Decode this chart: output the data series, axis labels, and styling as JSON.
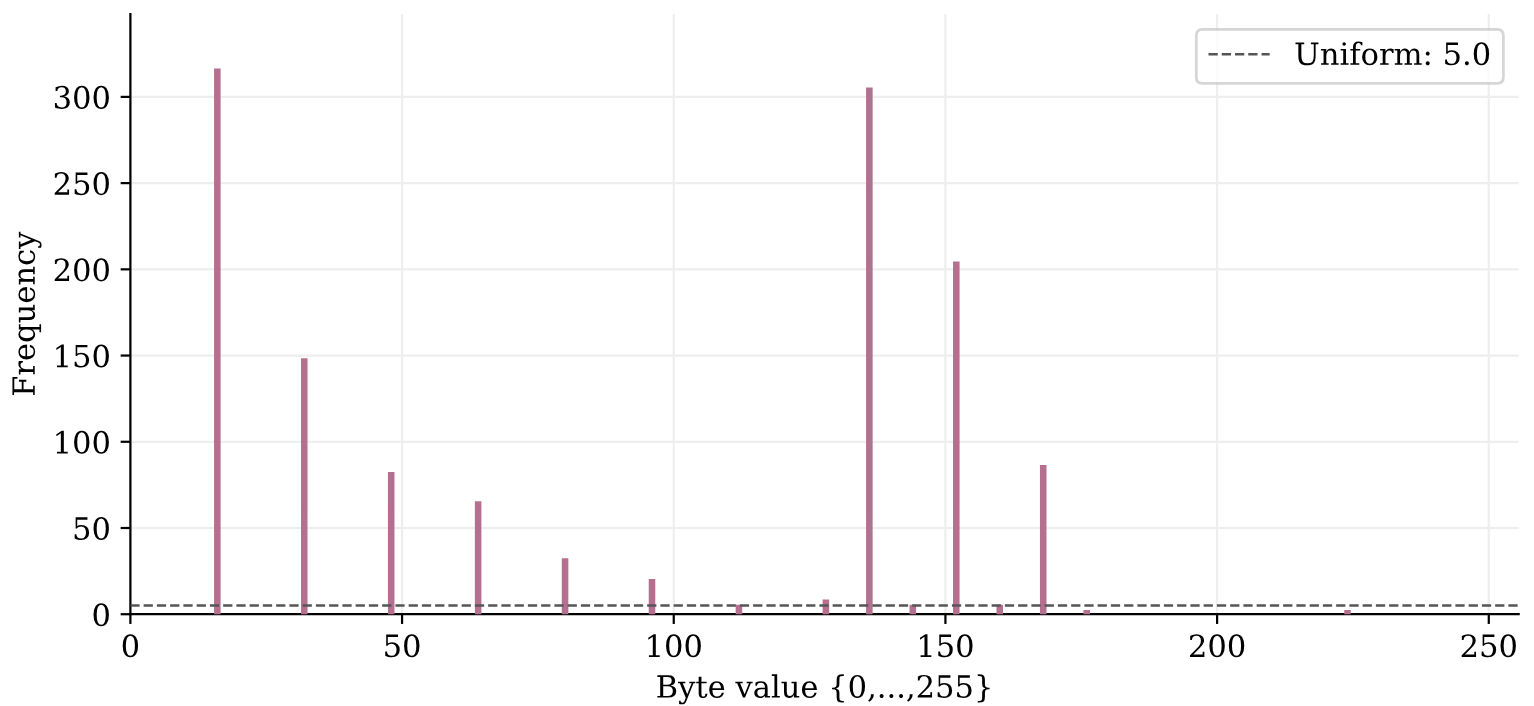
{
  "chart_data": {
    "type": "bar",
    "xlabel": "Byte value {0,...,255}",
    "ylabel": "Frequency",
    "x": [
      16,
      32,
      48,
      64,
      80,
      96,
      112,
      128,
      136,
      144,
      152,
      160,
      168,
      176,
      224
    ],
    "values": [
      316,
      148,
      82,
      65,
      32,
      20,
      5,
      8,
      305,
      5,
      204,
      5,
      86,
      2,
      2
    ],
    "color": "#b5708f",
    "xlim": [
      0,
      255.5
    ],
    "xticks": [
      0,
      50,
      100,
      150,
      200,
      250
    ],
    "ylim": [
      0,
      348
    ],
    "yticks": [
      0,
      50,
      100,
      150,
      200,
      250,
      300
    ],
    "grid": true,
    "legend": "top right",
    "ref_lines": [
      {
        "axis": "y",
        "value": 5,
        "label": "Uniform: 5.0",
        "color": "#555555",
        "line_style": "dashed"
      }
    ]
  }
}
